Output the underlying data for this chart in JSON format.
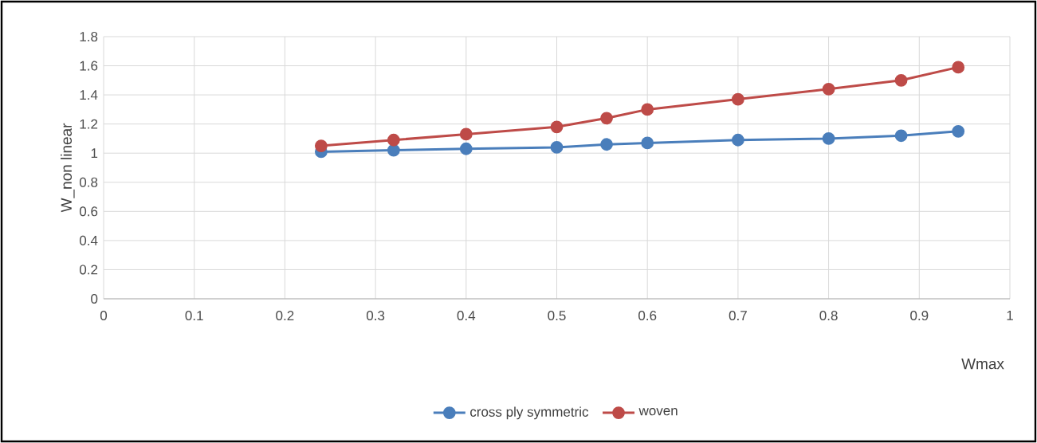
{
  "chart_data": {
    "type": "line",
    "xlabel": "Wmax",
    "ylabel": "W_non linear",
    "x": [
      0.24,
      0.32,
      0.4,
      0.5,
      0.555,
      0.6,
      0.7,
      0.8,
      0.88,
      0.943
    ],
    "series": [
      {
        "name": "cross ply symmetric",
        "color": "#4a7ebb",
        "values": [
          1.01,
          1.02,
          1.03,
          1.04,
          1.06,
          1.07,
          1.09,
          1.1,
          1.12,
          1.15
        ]
      },
      {
        "name": "woven",
        "color": "#be4b48",
        "values": [
          1.05,
          1.09,
          1.13,
          1.18,
          1.24,
          1.3,
          1.37,
          1.44,
          1.5,
          1.59
        ]
      }
    ],
    "xlim": [
      0,
      1
    ],
    "xticks": [
      0,
      0.1,
      0.2,
      0.3,
      0.4,
      0.5,
      0.6,
      0.7,
      0.8,
      0.9,
      1
    ],
    "ylim": [
      0,
      1.8
    ],
    "yticks": [
      0,
      0.2,
      0.4,
      0.6,
      0.8,
      1,
      1.2,
      1.4,
      1.6,
      1.8
    ],
    "grid": true,
    "legend": "bottom",
    "marker": "circle",
    "line_style": "solid"
  }
}
